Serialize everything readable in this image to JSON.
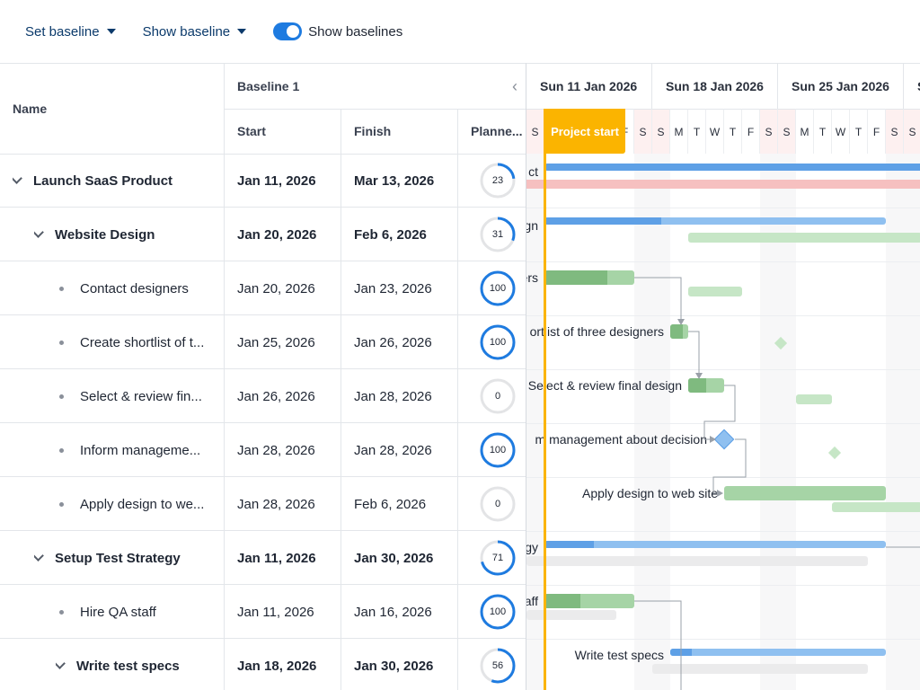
{
  "toolbar": {
    "set_baseline": "Set baseline",
    "show_baseline": "Show baseline",
    "show_baselines_label": "Show baselines",
    "show_baselines_on": true
  },
  "grid": {
    "headers": {
      "name": "Name",
      "group": "Baseline 1",
      "start": "Start",
      "finish": "Finish",
      "planned": "Planne..."
    },
    "rows": [
      {
        "name": "Launch SaaS Product",
        "start": "Jan 11, 2026",
        "finish": "Mar 13, 2026",
        "planned": "23",
        "progress": 23,
        "parent": true
      },
      {
        "name": "Website Design",
        "start": "Jan 20, 2026",
        "finish": "Feb 6, 2026",
        "planned": "31",
        "progress": 31,
        "parent": true
      },
      {
        "name": "Contact designers",
        "start": "Jan 20, 2026",
        "finish": "Jan 23, 2026",
        "planned": "100",
        "progress": 100,
        "parent": false
      },
      {
        "name": "Create shortlist of t...",
        "start": "Jan 25, 2026",
        "finish": "Jan 26, 2026",
        "planned": "100",
        "progress": 100,
        "parent": false
      },
      {
        "name": "Select & review fin...",
        "start": "Jan 26, 2026",
        "finish": "Jan 28, 2026",
        "planned": "0",
        "progress": 0,
        "parent": false
      },
      {
        "name": "Inform manageme...",
        "start": "Jan 28, 2026",
        "finish": "Jan 28, 2026",
        "planned": "100",
        "progress": 100,
        "parent": false
      },
      {
        "name": "Apply design to we...",
        "start": "Jan 28, 2026",
        "finish": "Feb 6, 2026",
        "planned": "0",
        "progress": 0,
        "parent": false
      },
      {
        "name": "Setup Test Strategy",
        "start": "Jan 11, 2026",
        "finish": "Jan 30, 2026",
        "planned": "71",
        "progress": 71,
        "parent": true
      },
      {
        "name": "Hire QA staff",
        "start": "Jan 11, 2026",
        "finish": "Jan 16, 2026",
        "planned": "100",
        "progress": 100,
        "parent": false
      },
      {
        "name": "Write test specs",
        "start": "Jan 18, 2026",
        "finish": "Jan 30, 2026",
        "planned": "56",
        "progress": 56,
        "parent": true
      }
    ]
  },
  "gantt": {
    "weeks": [
      "Sun 11 Jan 2026",
      "Sun 18 Jan 2026",
      "Sun 25 Jan 2026",
      "S"
    ],
    "days": [
      "S",
      "M",
      "T",
      "W",
      "T",
      "F",
      "S",
      "S",
      "M",
      "T",
      "W",
      "T",
      "F",
      "S",
      "S",
      "M",
      "T",
      "W",
      "T",
      "F",
      "S",
      "S"
    ],
    "project_start_label": "Project start",
    "task_labels": [
      "ct",
      "gn",
      "ers",
      "ortlist of three designers",
      "Select & review final design",
      "m management about decision",
      "Apply design to web site",
      "gy",
      "aff",
      "Write test specs"
    ],
    "colors": {
      "summary_bar": "#5ea0e6",
      "summary_light": "#8fc0f0",
      "task_done": "#7fba7f",
      "task_todo": "#a6d4a6",
      "baseline_green": "#c6e6c6",
      "baseline_red": "#f6c0c0",
      "baseline_grey": "#ebebec",
      "milestone": "#8fc0f0",
      "project_start": "#fbb400",
      "ring": "#1e7be0"
    }
  }
}
